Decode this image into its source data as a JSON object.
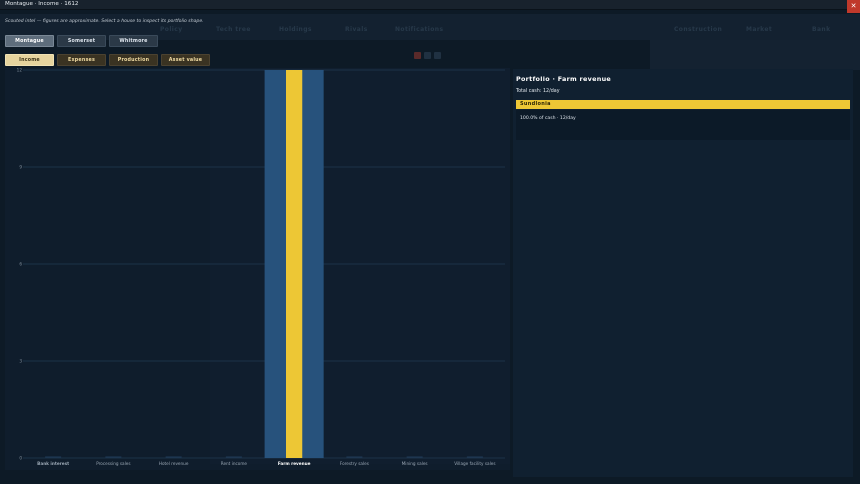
{
  "window": {
    "title": "Montague · Income · 1612"
  },
  "subtitle": "Scouted intel — figures are approximate. Select a house to inspect its portfolio shape.",
  "background_tabs": [
    "Policy",
    "Tech tree",
    "Holdings",
    "Rivals",
    "Notifications",
    "Construction",
    "Market",
    "Bank"
  ],
  "houses": [
    "Montague",
    "Somerset",
    "Whitmore"
  ],
  "selected_house": "Montague",
  "modes": [
    "Income",
    "Expenses",
    "Production",
    "Asset value"
  ],
  "selected_mode": "Income",
  "colors": {
    "highlight": "#edc735",
    "bar_base": "#27527c",
    "accent_button": "#e6d49e"
  },
  "chart_data": {
    "type": "bar",
    "categories": [
      "Bank interest",
      "Processing sales",
      "Hotel revenue",
      "Rent income",
      "Farm revenue",
      "Forestry sales",
      "Mining sales",
      "Village facility sales"
    ],
    "values": [
      0,
      0,
      0,
      0,
      12,
      0,
      0,
      0
    ],
    "highlighted_category": "Farm revenue",
    "yticks": [
      "0",
      "3",
      "6",
      "9",
      "12"
    ],
    "ylim": [
      0,
      12
    ],
    "grid": true
  },
  "panel": {
    "header": "Portfolio · Farm revenue",
    "total": "Total cash: 12/day",
    "house_name": "Sundlonia",
    "detail": "100.0% of cash · 12/day"
  }
}
